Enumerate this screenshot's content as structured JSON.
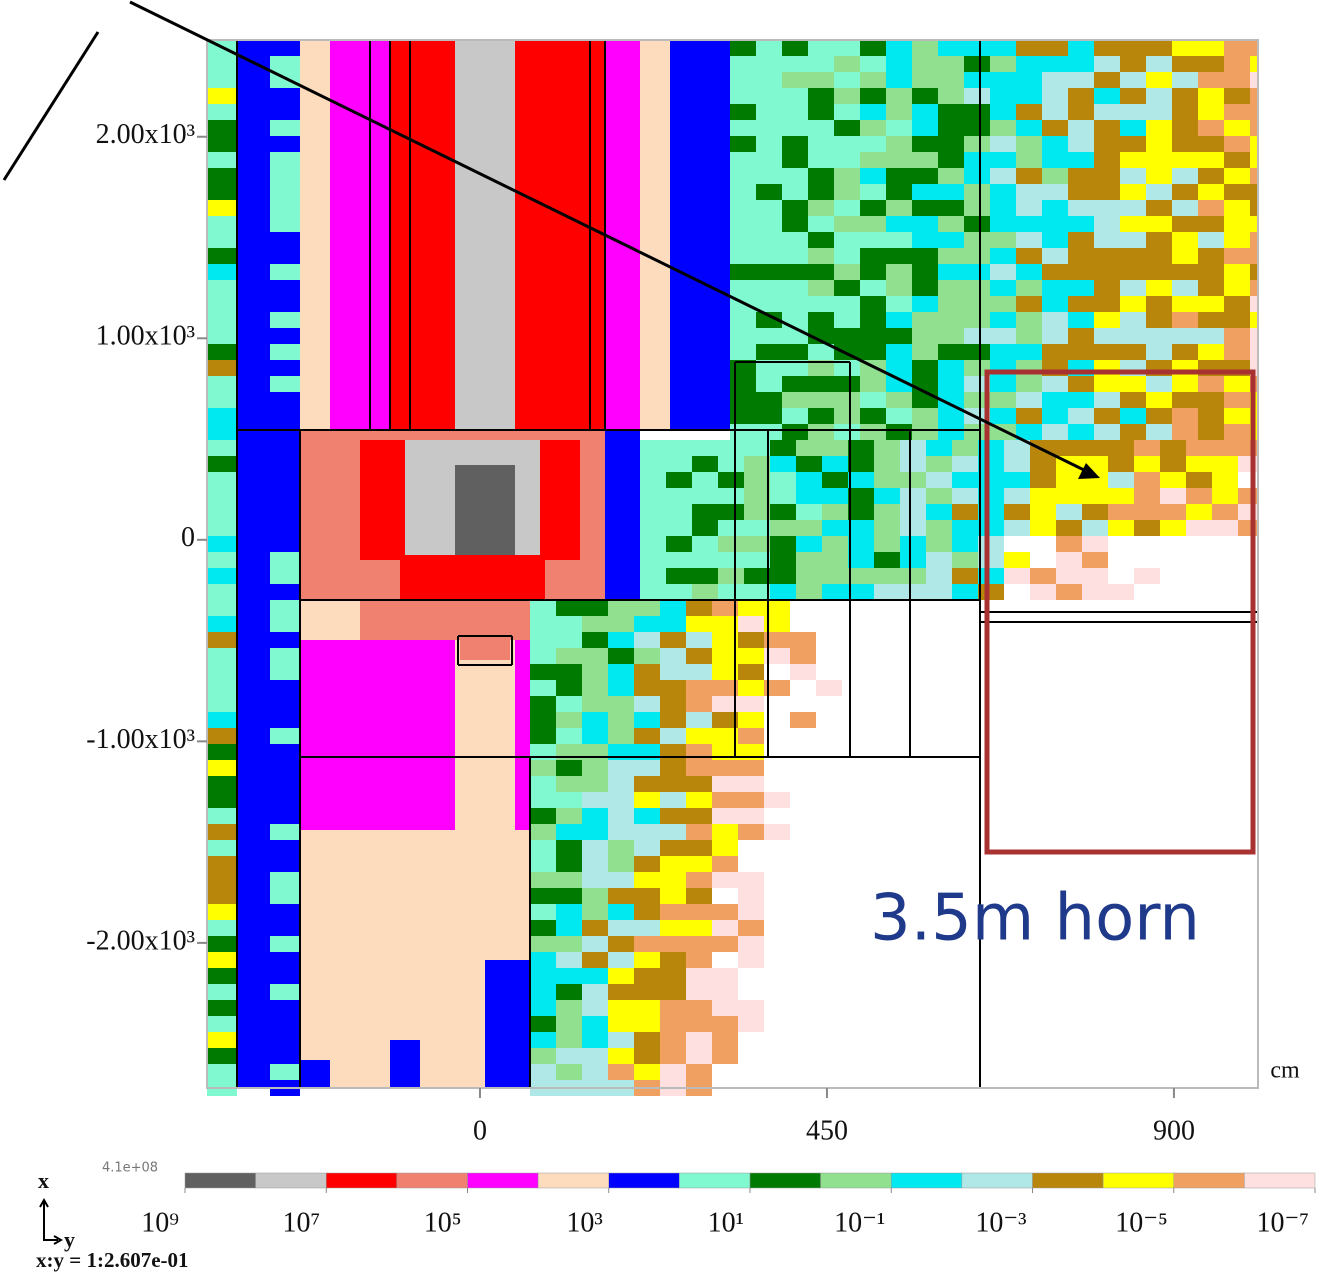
{
  "chart_data": {
    "type": "mesh",
    "xlim": [
      -354,
      1009
    ],
    "xticks": [
      0,
      450,
      900
    ],
    "xlabel": "cm",
    "ylim": [
      -2720,
      2480
    ],
    "yticks": [
      {
        "value": 2000,
        "label": "2.00x10³"
      },
      {
        "value": 1000,
        "label": "1.00x10³"
      },
      0,
      {
        "value": -1000,
        "label": "-1.00x10³"
      },
      {
        "value": -2000,
        "label": "-2.00x10³"
      }
    ],
    "annotation": "3.5m horn",
    "colorbar": {
      "log": true,
      "lim": [
        1000000000,
        1e-07
      ],
      "max_label": "4.1e+08",
      "colors": [
        "#606060",
        "#c8c8c8",
        "#ff0000",
        "#f08070",
        "#ff00ff",
        "#fddcbe",
        "#0000ff",
        "#80f8d0",
        "#007a00",
        "#90e090",
        "#00e8f0",
        "#b0e8e8",
        "#b8860b",
        "#ffff00",
        "#f0a060",
        "#ffe0e0"
      ],
      "ticks": [
        {
          "value": 1000000000,
          "label": "10⁹"
        },
        {
          "value": 10000000,
          "label": "10⁷"
        },
        {
          "value": 100000,
          "label": "10⁵"
        },
        {
          "value": 1000,
          "label": "10³"
        },
        {
          "value": 10,
          "label": "10¹"
        },
        {
          "value": 0.1,
          "label": "10⁻¹"
        },
        {
          "value": 0.001,
          "label": "10⁻³"
        },
        {
          "value": 1e-05,
          "label": "10⁻⁵"
        },
        {
          "value": 1e-07,
          "label": "10⁻⁷"
        }
      ]
    },
    "axis_indicator": {
      "x": "x",
      "y": "y"
    },
    "aspect_label": "x:y = 1:2.607e-01"
  }
}
